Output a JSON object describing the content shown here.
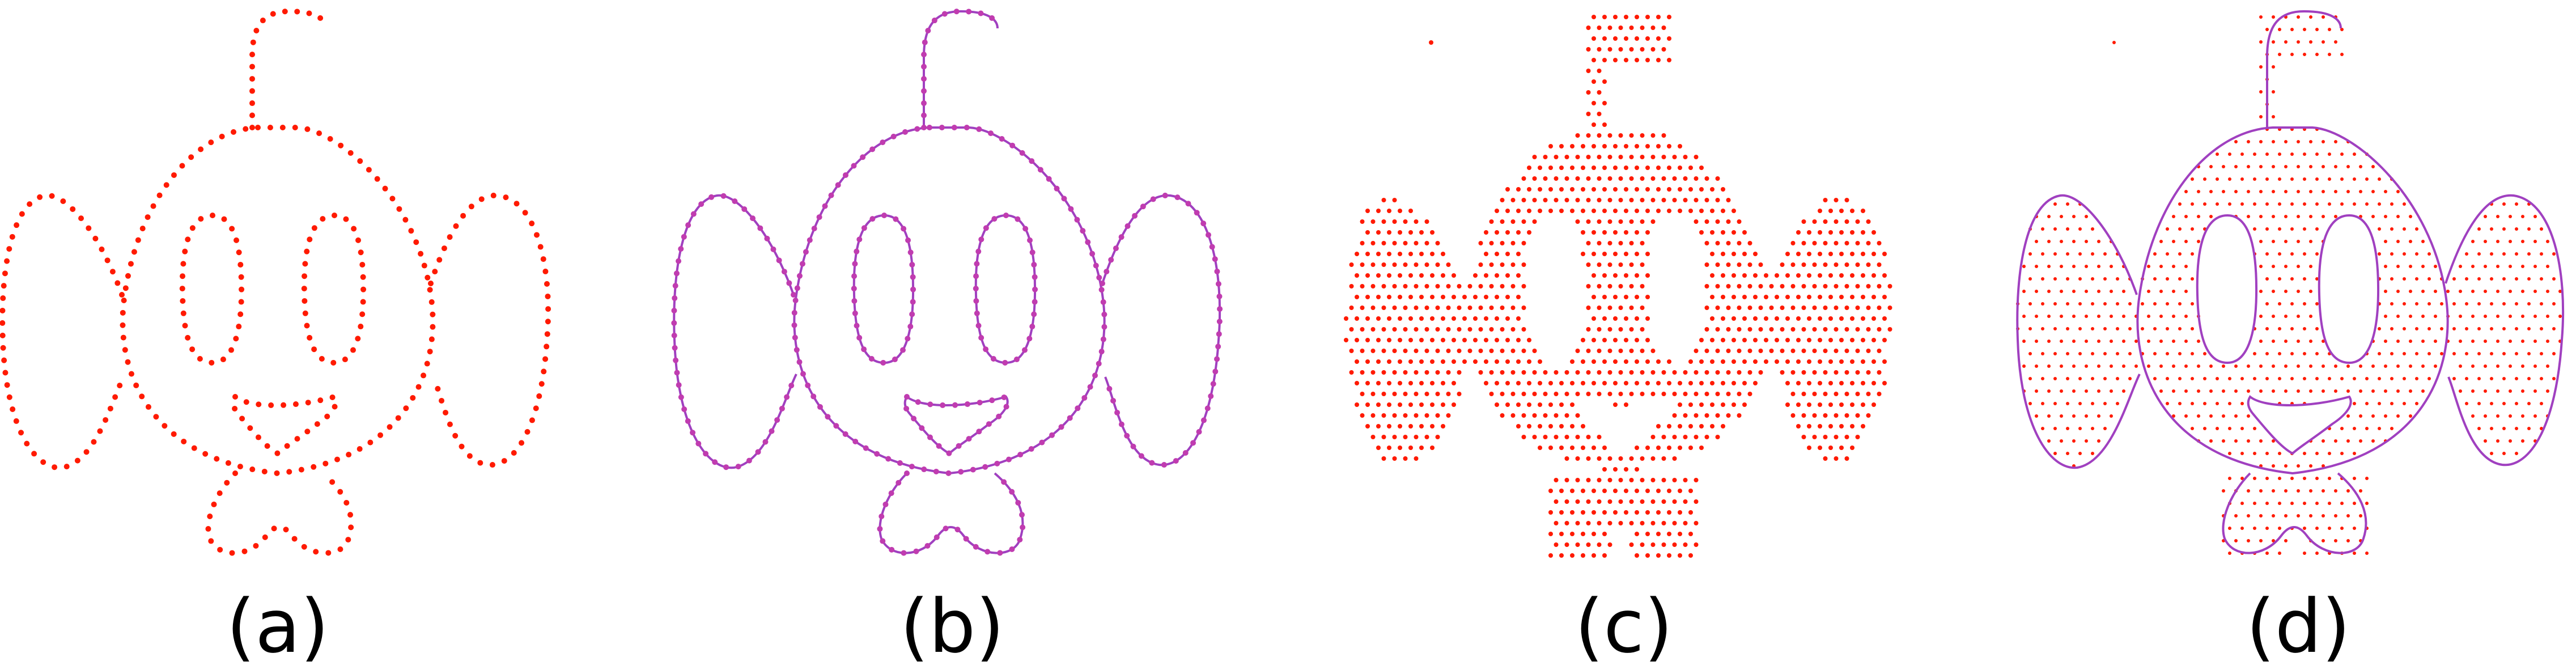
{
  "panels": [
    {
      "label": "(a)",
      "mode": "boundary-points"
    },
    {
      "label": "(b)",
      "mode": "boundary-curve-with-points"
    },
    {
      "label": "(c)",
      "mode": "interior-points"
    },
    {
      "label": "(d)",
      "mode": "boundary-curve-with-interior-points"
    }
  ],
  "colors": {
    "point": "#ff1a00",
    "curve": "#a040c0",
    "marker": "#c03cb0",
    "background": "#ffffff",
    "caption": "#000000"
  }
}
